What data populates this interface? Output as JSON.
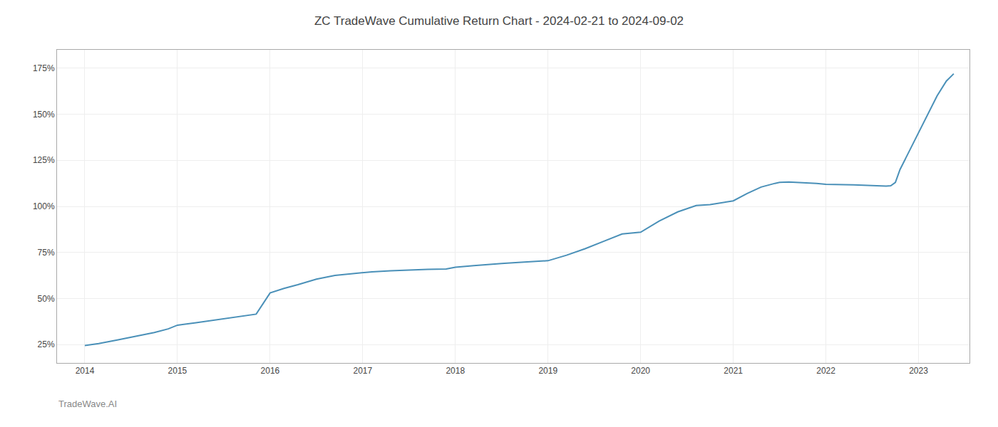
{
  "chart_data": {
    "type": "line",
    "title": "ZC TradeWave Cumulative Return Chart - 2024-02-21 to 2024-09-02",
    "annotations": [
      "TradeWave.AI"
    ],
    "x": [
      2014.0,
      2014.15,
      2014.35,
      2014.55,
      2014.75,
      2014.9,
      2015.0,
      2015.2,
      2015.4,
      2015.55,
      2015.7,
      2015.85,
      2016.0,
      2016.15,
      2016.3,
      2016.5,
      2016.7,
      2016.9,
      2017.1,
      2017.3,
      2017.5,
      2017.7,
      2017.9,
      2018.0,
      2018.2,
      2018.35,
      2018.5,
      2018.65,
      2018.8,
      2019.0,
      2019.2,
      2019.4,
      2019.6,
      2019.8,
      2020.0,
      2020.2,
      2020.4,
      2020.6,
      2020.75,
      2021.0,
      2021.15,
      2021.3,
      2021.45,
      2021.5,
      2021.6,
      2021.7,
      2021.8,
      2021.9,
      2022.0,
      2022.1,
      2022.2,
      2022.3,
      2022.4,
      2022.5,
      2022.55,
      2022.6,
      2022.65,
      2022.7,
      2022.75,
      2022.8,
      2022.9,
      2023.0,
      2023.1,
      2023.2,
      2023.3,
      2023.38
    ],
    "values": [
      24.5,
      25.5,
      27.5,
      29.5,
      31.5,
      33.5,
      35.5,
      36.8,
      38.2,
      39.5,
      40.5,
      41.5,
      53.0,
      55.5,
      57.5,
      60.5,
      62.5,
      63.5,
      64.5,
      65.0,
      65.5,
      65.8,
      66.0,
      67.0,
      67.8,
      68.5,
      69.0,
      69.5,
      70.0,
      70.5,
      73.5,
      77.0,
      81.0,
      85.0,
      86.0,
      92.0,
      97.0,
      100.5,
      101.0,
      103.0,
      107.0,
      110.5,
      112.5,
      113.0,
      113.2,
      113.0,
      112.8,
      112.5,
      112.0,
      111.8,
      111.8,
      111.7,
      111.5,
      111.3,
      111.2,
      111.0,
      111.0,
      111.2,
      113.0,
      120.0,
      130.0,
      140.0,
      150.0,
      160.0,
      168.0,
      172.0
    ],
    "color": "#4a90b8",
    "xlim": [
      2013.7,
      2023.55
    ],
    "xticks": [
      2014,
      2015,
      2016,
      2017,
      2018,
      2019,
      2020,
      2021,
      2022,
      2023
    ],
    "ylim": [
      15,
      185
    ],
    "yticks": [
      {
        "value": 25,
        "label": "25%"
      },
      {
        "value": 50,
        "label": "50%"
      },
      {
        "value": 75,
        "label": "75%"
      },
      {
        "value": 100,
        "label": "100%"
      },
      {
        "value": 125,
        "label": "125%"
      },
      {
        "value": 150,
        "label": "150%"
      },
      {
        "value": 175,
        "label": "175%"
      }
    ],
    "grid": true
  }
}
